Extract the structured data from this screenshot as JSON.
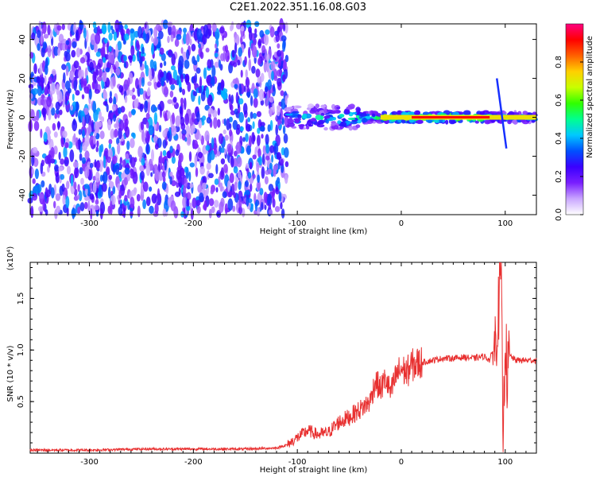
{
  "title": "C2E1.2022.351.16.08.G03",
  "chart_data": [
    {
      "type": "heatmap",
      "xlabel": "Height of straight line (km)",
      "ylabel": "Frequency (Hz)",
      "xlim": [
        -357,
        130
      ],
      "ylim": [
        -50,
        48
      ],
      "xticks": [
        -300,
        -200,
        -100,
        0,
        100
      ],
      "yticks": [
        -40,
        -20,
        0,
        20,
        40
      ],
      "xtick_labels": [
        "-300",
        "-200",
        "-100",
        "0",
        "100"
      ],
      "ytick_labels": [
        "-40",
        "-20",
        "0",
        "20",
        "40"
      ],
      "colorbar": {
        "label": "Normalized spectral amplitude",
        "range": [
          0,
          1
        ],
        "ticks": [
          0.0,
          0.2,
          0.4,
          0.6,
          0.8
        ],
        "tick_labels": [
          "0.0",
          "0.2",
          "0.4",
          "0.6",
          "0.8"
        ],
        "colors": [
          "#ffffff",
          "#c9a6ff",
          "#7a1fff",
          "#3a00ff",
          "#0050ff",
          "#00c8ff",
          "#00ff90",
          "#30ff00",
          "#c8ff00",
          "#ffd000",
          "#ff6000",
          "#ff0000",
          "#ff0080"
        ]
      },
      "features": {
        "noise_region_x": [
          -357,
          -110
        ],
        "tone_region_x": [
          -110,
          130
        ],
        "tone_frequency": 0,
        "peak_amplitude_x": [
          -20,
          85
        ],
        "spike_x": 95
      }
    },
    {
      "type": "line",
      "xlabel": "Height of straight line (km)",
      "ylabel": "SNR (10 * v/v)",
      "yscale_label": "(x10⁴)",
      "xlim": [
        -357,
        130
      ],
      "ylim": [
        0,
        1.85
      ],
      "xticks": [
        -300,
        -200,
        -100,
        0,
        100
      ],
      "yticks": [
        0.5,
        1.0,
        1.5
      ],
      "xtick_labels": [
        "-300",
        "-200",
        "-100",
        "0",
        "100"
      ],
      "ytick_labels": [
        "0.5",
        "1.0",
        "1.5"
      ],
      "color": "#e83030",
      "series": [
        {
          "x": [
            -357,
            -300,
            -250,
            -200,
            -150,
            -120,
            -110,
            -100,
            -90,
            -80,
            -70,
            -60,
            -50,
            -40,
            -30,
            -25,
            -20,
            -15,
            -10,
            -5,
            0,
            5,
            10,
            20,
            30,
            40,
            50,
            60,
            70,
            80,
            85,
            90,
            93,
            96,
            98,
            100,
            102,
            104,
            110,
            120,
            130
          ],
          "y": [
            0.03,
            0.03,
            0.04,
            0.04,
            0.04,
            0.05,
            0.08,
            0.15,
            0.22,
            0.18,
            0.2,
            0.3,
            0.35,
            0.42,
            0.5,
            0.7,
            0.62,
            0.72,
            0.58,
            0.75,
            0.82,
            0.78,
            0.85,
            0.88,
            0.9,
            0.92,
            0.92,
            0.93,
            0.92,
            0.94,
            0.9,
            1.05,
            1.3,
            1.8,
            0.05,
            1.2,
            0.7,
            0.95,
            0.9,
            0.9,
            0.9
          ]
        }
      ]
    }
  ]
}
